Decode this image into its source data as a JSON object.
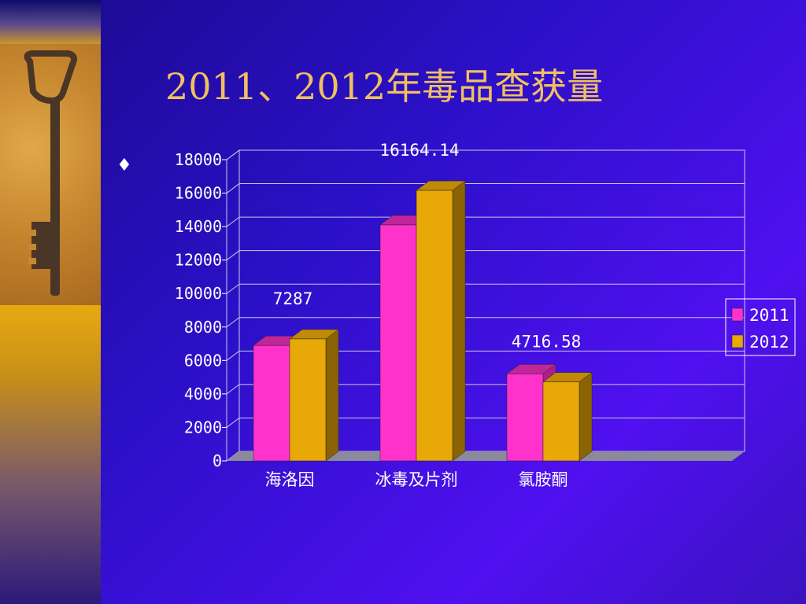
{
  "slide": {
    "title": "2011、2012年毒品查获量",
    "bullet": "♦"
  },
  "colors": {
    "series_2011": "#ff33cc",
    "series_2011_top": "#c0269a",
    "series_2011_side": "#b01e8c",
    "series_2012": "#e8a808",
    "series_2012_top": "#c08a06",
    "series_2012_side": "#8a6404",
    "floor": "#8a8a9a",
    "grid": "#c8c8e8"
  },
  "chart_data": {
    "type": "bar",
    "categories": [
      "海洛因",
      "冰毒及片剂",
      "氯胺酮"
    ],
    "series": [
      {
        "name": "2011",
        "values": [
          6900,
          14100,
          5200
        ]
      },
      {
        "name": "2012",
        "values": [
          7287,
          16164.14,
          4716.58
        ]
      }
    ],
    "data_labels": [
      {
        "category": "海洛因",
        "text": "7287"
      },
      {
        "category": "冰毒及片剂",
        "text": "16164.14"
      },
      {
        "category": "氯胺酮",
        "text": "4716.58"
      }
    ],
    "yticks": [
      "0",
      "2000",
      "4000",
      "6000",
      "8000",
      "10000",
      "12000",
      "14000",
      "16000",
      "18000"
    ],
    "ylim": [
      0,
      18000
    ],
    "grid": true,
    "legend_position": "right",
    "legend": [
      "2011",
      "2012"
    ]
  }
}
